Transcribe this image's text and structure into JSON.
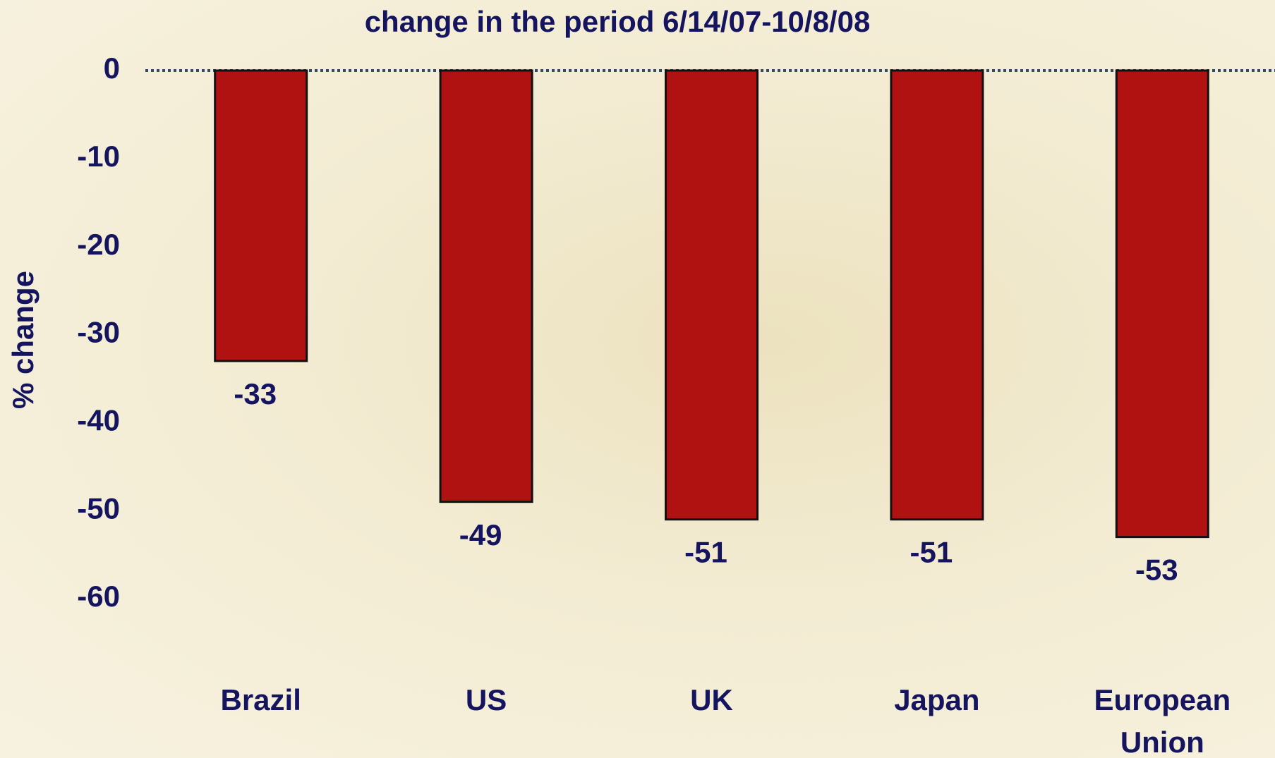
{
  "chart_data": {
    "type": "bar",
    "title": "change in the period 6/14/07-10/8/08",
    "y_label": "% change",
    "categories": [
      "Brazil",
      "US",
      "UK",
      "Japan",
      "European Union"
    ],
    "values": [
      -33,
      -49,
      -51,
      -51,
      -53
    ],
    "color": "#b01212",
    "ylim": [
      -60,
      0
    ],
    "yticks": [
      0,
      -10,
      -20,
      -30,
      -40,
      -50,
      -60
    ],
    "grid": false
  }
}
